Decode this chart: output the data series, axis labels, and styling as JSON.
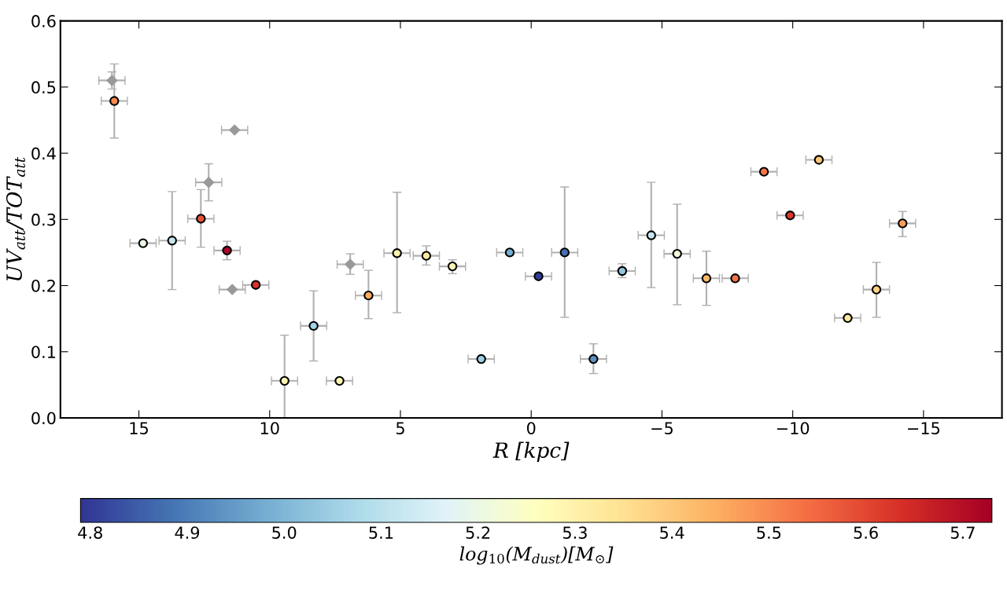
{
  "chart_data": {
    "type": "scatter",
    "xlabel": "R [kpc]",
    "ylabel": "UV$_{att}$/TOT$_{att}$",
    "clabel": "log$_{10}$(M$_{dust}$)[M$_{⊙}$]",
    "xlim": [
      18,
      -18
    ],
    "ylim": [
      0,
      0.6
    ],
    "xticks": [
      {
        "value": 15,
        "label": "15"
      },
      {
        "value": 10,
        "label": "10"
      },
      {
        "value": 5,
        "label": "5"
      },
      {
        "value": 0,
        "label": "0"
      },
      {
        "value": -5,
        "label": "−5"
      },
      {
        "value": -10,
        "label": "−10"
      },
      {
        "value": -15,
        "label": "−15"
      }
    ],
    "yticks": [
      {
        "value": 0,
        "label": "0.0"
      },
      {
        "value": 0.1,
        "label": "0.1"
      },
      {
        "value": 0.2,
        "label": "0.2"
      },
      {
        "value": 0.3,
        "label": "0.3"
      },
      {
        "value": 0.4,
        "label": "0.4"
      },
      {
        "value": 0.5,
        "label": "0.5"
      },
      {
        "value": 0.6,
        "label": "0.6"
      }
    ],
    "clim": [
      4.79,
      5.73
    ],
    "cticks": [
      {
        "value": 4.8,
        "label": "4.8"
      },
      {
        "value": 4.9,
        "label": "4.9"
      },
      {
        "value": 5.0,
        "label": "5.0"
      },
      {
        "value": 5.1,
        "label": "5.1"
      },
      {
        "value": 5.2,
        "label": "5.2"
      },
      {
        "value": 5.3,
        "label": "5.3"
      },
      {
        "value": 5.4,
        "label": "5.4"
      },
      {
        "value": 5.5,
        "label": "5.5"
      },
      {
        "value": 5.6,
        "label": "5.6"
      },
      {
        "value": 5.7,
        "label": "5.7"
      }
    ],
    "series": [
      {
        "color": "#999999",
        "marker": "diamond",
        "x": [
          16.03,
          12.33,
          11.34,
          11.43,
          6.92
        ],
        "values": [
          0.51,
          0.356,
          0.435,
          0.194,
          0.232
        ],
        "errors": [
          [
            0.497,
            0.523
          ],
          [
            0.328,
            0.384
          ],
          null,
          null,
          [
            0.217,
            0.248
          ]
        ],
        "xerrors": [
          0.5,
          0.5,
          0.5,
          0.5,
          0.5
        ]
      },
      {
        "color": "#000000",
        "marker": "circle",
        "x": [
          15.94,
          14.84,
          13.73,
          12.63,
          11.63,
          10.53,
          9.43,
          8.32,
          7.33,
          6.22,
          5.13,
          4.01,
          3.01,
          1.91,
          0.82,
          -0.28,
          -1.28,
          -2.38,
          -3.48,
          -4.59,
          -5.58,
          -6.7,
          -7.8,
          -8.9,
          -9.9,
          -11.0,
          -12.1,
          -13.2,
          -14.2
        ],
        "values": [
          0.479,
          0.264,
          0.268,
          0.301,
          0.253,
          0.201,
          0.056,
          0.139,
          0.056,
          0.185,
          0.249,
          0.245,
          0.229,
          0.089,
          0.25,
          0.214,
          0.25,
          0.089,
          0.222,
          0.276,
          0.248,
          0.211,
          0.211,
          0.372,
          0.306,
          0.39,
          0.151,
          0.194,
          0.294
        ],
        "cvalues": [
          5.5,
          5.2,
          5.12,
          5.58,
          5.72,
          5.63,
          5.28,
          5.06,
          5.28,
          5.45,
          5.3,
          5.32,
          5.28,
          5.05,
          4.98,
          4.8,
          4.88,
          4.93,
          5.03,
          5.12,
          5.22,
          5.43,
          5.53,
          5.53,
          5.62,
          5.4,
          5.33,
          5.38,
          5.47
        ],
        "errors": [
          [
            0.423,
            0.535
          ],
          null,
          [
            0.194,
            0.342
          ],
          [
            0.258,
            0.345
          ],
          [
            0.239,
            0.267
          ],
          null,
          [
            0.0,
            0.125
          ],
          [
            0.086,
            0.192
          ],
          null,
          [
            0.15,
            0.223
          ],
          [
            0.159,
            0.341
          ],
          [
            0.231,
            0.26
          ],
          [
            0.218,
            0.239
          ],
          null,
          null,
          null,
          [
            0.152,
            0.349
          ],
          [
            0.067,
            0.112
          ],
          [
            0.212,
            0.233
          ],
          [
            0.197,
            0.356
          ],
          [
            0.171,
            0.323
          ],
          [
            0.17,
            0.252
          ],
          null,
          null,
          null,
          null,
          null,
          [
            0.152,
            0.235
          ],
          [
            0.274,
            0.312
          ]
        ],
        "xerrors": [
          0.5,
          0.5,
          0.5,
          0.5,
          0.5,
          0.5,
          0.5,
          0.5,
          0.5,
          0.5,
          0.5,
          0.5,
          0.5,
          0.5,
          0.5,
          0.5,
          0.5,
          0.5,
          0.5,
          0.5,
          0.5,
          0.5,
          0.5,
          0.5,
          0.5,
          0.5,
          0.5,
          0.5,
          0.5
        ]
      }
    ]
  }
}
